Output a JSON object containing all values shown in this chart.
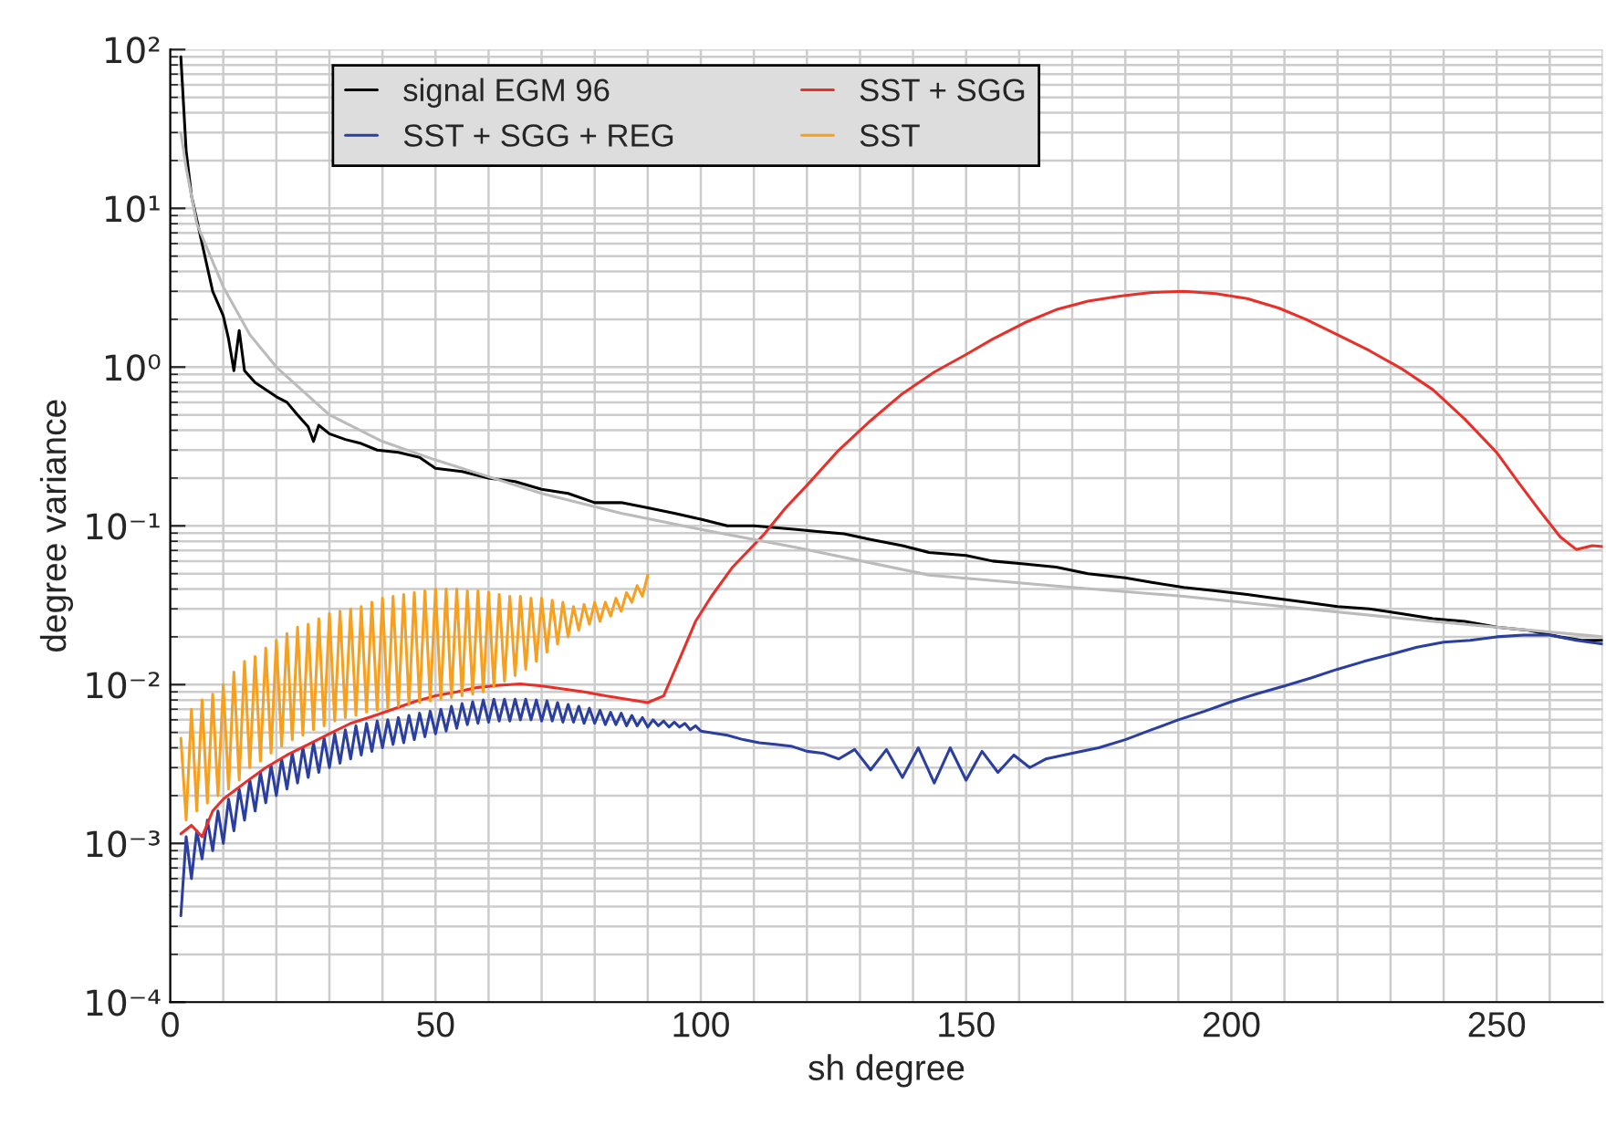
{
  "chart_data": {
    "type": "line",
    "xlabel": "sh degree",
    "ylabel": "degree variance",
    "log": "y",
    "grid": true,
    "legend": "top",
    "xlim": [
      0,
      270
    ],
    "xticks": [
      0,
      {
        "value": 10,
        "label": null
      },
      {
        "value": 20,
        "label": null
      },
      {
        "value": 30,
        "label": null
      },
      {
        "value": 40,
        "label": null
      },
      50,
      {
        "value": 60,
        "label": null
      },
      {
        "value": 70,
        "label": null
      },
      {
        "value": 80,
        "label": null
      },
      {
        "value": 90,
        "label": null
      },
      100,
      {
        "value": 110,
        "label": null
      },
      {
        "value": 120,
        "label": null
      },
      {
        "value": 130,
        "label": null
      },
      {
        "value": 140,
        "label": null
      },
      150,
      {
        "value": 160,
        "label": null
      },
      {
        "value": 170,
        "label": null
      },
      {
        "value": 180,
        "label": null
      },
      {
        "value": 190,
        "label": null
      },
      200,
      {
        "value": 210,
        "label": null
      },
      {
        "value": 220,
        "label": null
      },
      {
        "value": 230,
        "label": null
      },
      {
        "value": 240,
        "label": null
      },
      250,
      {
        "value": 260,
        "label": null
      },
      {
        "value": 270,
        "label": null
      }
    ],
    "ylim": [
      0.0001,
      100
    ],
    "yticks": [
      {
        "value": 0.0001,
        "label": "10⁻⁴"
      },
      {
        "value": 0.001,
        "label": "10⁻³"
      },
      {
        "value": 0.01,
        "label": "10⁻²"
      },
      {
        "value": 0.1,
        "label": "10⁻¹"
      },
      {
        "value": 1,
        "label": "10⁰"
      },
      {
        "value": 10,
        "label": "10¹"
      },
      {
        "value": 100,
        "label": "10²"
      }
    ],
    "series": [
      {
        "name": "signal EGM 96",
        "color": "#000000",
        "x": [
          2,
          3,
          4,
          6,
          8,
          10,
          11,
          12,
          13,
          14,
          16,
          18,
          20,
          22,
          24,
          26,
          27,
          28,
          30,
          33,
          36,
          39,
          43,
          47,
          50,
          55,
          60,
          65,
          70,
          75,
          80,
          85,
          90,
          95,
          100,
          105,
          110,
          113,
          118,
          122,
          127,
          132,
          138,
          143,
          150,
          155,
          160,
          167,
          173,
          180,
          185,
          191,
          197,
          203,
          208,
          214,
          220,
          226,
          232,
          238,
          244,
          250,
          256,
          262,
          266,
          270
        ],
        "values": [
          90,
          23,
          12,
          6,
          3,
          2.1,
          1.5,
          0.95,
          1.7,
          0.95,
          0.8,
          0.72,
          0.65,
          0.6,
          0.5,
          0.42,
          0.34,
          0.43,
          0.38,
          0.35,
          0.33,
          0.3,
          0.29,
          0.27,
          0.23,
          0.22,
          0.2,
          0.19,
          0.17,
          0.16,
          0.14,
          0.14,
          0.13,
          0.12,
          0.11,
          0.1,
          0.1,
          0.098,
          0.095,
          0.092,
          0.089,
          0.082,
          0.075,
          0.068,
          0.065,
          0.06,
          0.058,
          0.055,
          0.05,
          0.047,
          0.044,
          0.041,
          0.039,
          0.037,
          0.035,
          0.033,
          0.031,
          0.03,
          0.028,
          0.026,
          0.025,
          0.023,
          0.022,
          0.02,
          0.019,
          0.019
        ]
      },
      {
        "name": "SST + SGG + REG",
        "color": "#2b3fa0",
        "x": [
          2,
          3,
          4,
          5,
          6,
          7,
          8,
          9,
          10,
          11,
          12,
          13,
          14,
          15,
          16,
          17,
          18,
          19,
          20,
          21,
          22,
          23,
          24,
          25,
          26,
          27,
          28,
          29,
          30,
          31,
          32,
          33,
          34,
          35,
          36,
          37,
          38,
          39,
          40,
          41,
          42,
          43,
          44,
          45,
          46,
          47,
          48,
          49,
          50,
          51,
          52,
          53,
          54,
          55,
          56,
          57,
          58,
          59,
          60,
          61,
          62,
          63,
          64,
          65,
          66,
          67,
          68,
          69,
          70,
          71,
          72,
          73,
          74,
          75,
          76,
          77,
          78,
          79,
          80,
          81,
          82,
          83,
          84,
          85,
          86,
          87,
          88,
          89,
          90,
          91,
          92,
          93,
          94,
          95,
          96,
          97,
          98,
          99,
          100,
          105,
          108,
          111,
          114,
          117,
          120,
          123,
          126,
          129,
          132,
          135,
          138,
          141,
          144,
          147,
          150,
          153,
          156,
          159,
          162,
          165,
          170,
          175,
          180,
          185,
          190,
          195,
          200,
          205,
          210,
          215,
          220,
          225,
          230,
          235,
          240,
          245,
          250,
          255,
          260,
          265,
          270
        ],
        "values": [
          0.00035,
          0.0011,
          0.0006,
          0.0012,
          0.0008,
          0.0014,
          0.0009,
          0.0016,
          0.001,
          0.0019,
          0.0012,
          0.0022,
          0.0014,
          0.0025,
          0.0016,
          0.0028,
          0.0018,
          0.0031,
          0.002,
          0.0034,
          0.0022,
          0.0037,
          0.0024,
          0.004,
          0.0026,
          0.0043,
          0.0028,
          0.0046,
          0.003,
          0.0049,
          0.0032,
          0.0052,
          0.0034,
          0.0055,
          0.0036,
          0.0057,
          0.0038,
          0.0059,
          0.004,
          0.006,
          0.0042,
          0.0062,
          0.0043,
          0.0064,
          0.0045,
          0.0066,
          0.0047,
          0.0068,
          0.0049,
          0.007,
          0.0051,
          0.0073,
          0.0053,
          0.0076,
          0.0056,
          0.0078,
          0.0057,
          0.008,
          0.0058,
          0.0081,
          0.0059,
          0.0081,
          0.0059,
          0.0081,
          0.006,
          0.0081,
          0.006,
          0.008,
          0.0059,
          0.0079,
          0.0059,
          0.0077,
          0.0058,
          0.0075,
          0.0058,
          0.0073,
          0.0057,
          0.0071,
          0.0057,
          0.0069,
          0.0056,
          0.0067,
          0.0056,
          0.0066,
          0.0055,
          0.0064,
          0.0055,
          0.0062,
          0.0054,
          0.006,
          0.0055,
          0.0059,
          0.0054,
          0.0058,
          0.0054,
          0.0057,
          0.0052,
          0.0055,
          0.0051,
          0.0048,
          0.0045,
          0.0043,
          0.0042,
          0.0041,
          0.0038,
          0.0037,
          0.0034,
          0.0039,
          0.0029,
          0.0039,
          0.0026,
          0.004,
          0.0024,
          0.004,
          0.0025,
          0.0038,
          0.0028,
          0.0036,
          0.003,
          0.0034,
          0.0037,
          0.004,
          0.0045,
          0.0052,
          0.006,
          0.0068,
          0.0078,
          0.0088,
          0.0098,
          0.011,
          0.0125,
          0.014,
          0.0155,
          0.0172,
          0.0185,
          0.019,
          0.02,
          0.0205,
          0.0205,
          0.019,
          0.018
        ]
      },
      {
        "name": "SST + SGG",
        "color": "#e8302a",
        "x": [
          2,
          4,
          6,
          8,
          10,
          14,
          18,
          22,
          26,
          30,
          34,
          38,
          42,
          46,
          50,
          54,
          58,
          62,
          66,
          70,
          74,
          78,
          82,
          86,
          90,
          93,
          96,
          99,
          102,
          106,
          109,
          112,
          116,
          120,
          126,
          132,
          138,
          144,
          150,
          155,
          161,
          167,
          173,
          179,
          185,
          191,
          197,
          203,
          209,
          214,
          220,
          226,
          232,
          238,
          244,
          250,
          254,
          258,
          262,
          265,
          268,
          270
        ],
        "values": [
          0.00115,
          0.0013,
          0.0011,
          0.0016,
          0.0019,
          0.0024,
          0.003,
          0.0036,
          0.0042,
          0.0049,
          0.0057,
          0.0063,
          0.007,
          0.0078,
          0.0085,
          0.009,
          0.0096,
          0.0099,
          0.0101,
          0.0098,
          0.0094,
          0.009,
          0.0085,
          0.0081,
          0.0077,
          0.0085,
          0.0145,
          0.025,
          0.036,
          0.055,
          0.07,
          0.089,
          0.13,
          0.18,
          0.3,
          0.46,
          0.68,
          0.93,
          1.2,
          1.5,
          1.9,
          2.3,
          2.6,
          2.8,
          2.95,
          3.0,
          2.9,
          2.7,
          2.35,
          2.0,
          1.6,
          1.27,
          0.98,
          0.72,
          0.47,
          0.29,
          0.19,
          0.126,
          0.085,
          0.071,
          0.075,
          0.074
        ]
      },
      {
        "name": "SST",
        "color": "#f5a020",
        "x": [
          2,
          3,
          4,
          5,
          6,
          7,
          8,
          9,
          10,
          11,
          12,
          13,
          14,
          15,
          16,
          17,
          18,
          19,
          20,
          21,
          22,
          23,
          24,
          25,
          26,
          27,
          28,
          29,
          30,
          31,
          32,
          33,
          34,
          35,
          36,
          37,
          38,
          39,
          40,
          41,
          42,
          43,
          44,
          45,
          46,
          47,
          48,
          49,
          50,
          51,
          52,
          53,
          54,
          55,
          56,
          57,
          58,
          59,
          60,
          61,
          62,
          63,
          64,
          65,
          66,
          67,
          68,
          69,
          70,
          71,
          72,
          73,
          74,
          75,
          76,
          77,
          78,
          79,
          80,
          81,
          82,
          83,
          84,
          85,
          86,
          87,
          88,
          89,
          90
        ],
        "values": [
          0.0046,
          0.0014,
          0.007,
          0.0016,
          0.008,
          0.0018,
          0.0087,
          0.002,
          0.01,
          0.0022,
          0.012,
          0.0025,
          0.014,
          0.003,
          0.015,
          0.0033,
          0.017,
          0.0037,
          0.019,
          0.0041,
          0.021,
          0.0045,
          0.023,
          0.0048,
          0.024,
          0.0052,
          0.026,
          0.0055,
          0.028,
          0.0059,
          0.029,
          0.0062,
          0.03,
          0.0064,
          0.031,
          0.0067,
          0.033,
          0.0069,
          0.035,
          0.0071,
          0.036,
          0.0073,
          0.037,
          0.0075,
          0.038,
          0.0077,
          0.039,
          0.0079,
          0.04,
          0.0081,
          0.04,
          0.0083,
          0.04,
          0.0085,
          0.039,
          0.0087,
          0.039,
          0.009,
          0.038,
          0.0097,
          0.037,
          0.0105,
          0.036,
          0.0114,
          0.036,
          0.0125,
          0.035,
          0.014,
          0.035,
          0.016,
          0.034,
          0.018,
          0.033,
          0.02,
          0.031,
          0.022,
          0.032,
          0.024,
          0.033,
          0.025,
          0.033,
          0.027,
          0.035,
          0.029,
          0.038,
          0.033,
          0.042,
          0.036,
          0.049
        ]
      },
      {
        "color": "#bbbbbb",
        "x": [
          2,
          3,
          5,
          10,
          15,
          20,
          30,
          40,
          50,
          70,
          85,
          100,
          118,
          143,
          170,
          191,
          214,
          238,
          270
        ],
        "values": [
          30,
          18,
          8,
          3.2,
          1.6,
          1.0,
          0.5,
          0.34,
          0.26,
          0.16,
          0.12,
          0.095,
          0.073,
          0.049,
          0.041,
          0.036,
          0.03,
          0.025,
          0.02
        ]
      }
    ]
  }
}
